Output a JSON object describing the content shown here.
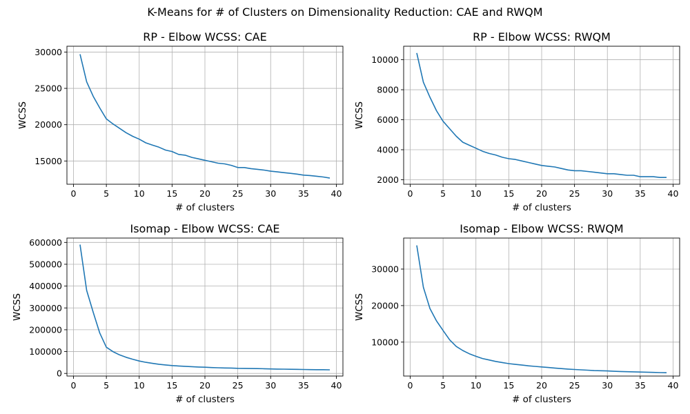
{
  "figure": {
    "suptitle": "K-Means for # of Clusters on Dimensionality Reduction: CAE and RWQM"
  },
  "style": {
    "line_color": "#1f77b4",
    "grid_color": "#b0b0b0",
    "axes_color": "#000000"
  },
  "chart_data": [
    {
      "type": "line",
      "title": "RP - Elbow WCSS: CAE",
      "xlabel": "# of clusters",
      "ylabel": "WCSS",
      "xlim": [
        -1,
        41
      ],
      "ylim": [
        11800,
        30800
      ],
      "xticks": [
        0,
        5,
        10,
        15,
        20,
        25,
        30,
        35,
        40
      ],
      "yticks": [
        15000,
        20000,
        25000,
        30000
      ],
      "grid": true,
      "series": [
        {
          "x": [
            1,
            2,
            3,
            4,
            5,
            6,
            7,
            8,
            9,
            10,
            11,
            12,
            13,
            14,
            15,
            16,
            17,
            18,
            19,
            20,
            21,
            22,
            23,
            24,
            25,
            26,
            27,
            28,
            29,
            30,
            31,
            32,
            33,
            34,
            35,
            36,
            37,
            38,
            39
          ],
          "y": [
            29700,
            25900,
            23900,
            22300,
            20800,
            20100,
            19500,
            18900,
            18400,
            18000,
            17500,
            17200,
            16900,
            16500,
            16300,
            15900,
            15800,
            15500,
            15300,
            15100,
            14900,
            14700,
            14600,
            14400,
            14100,
            14100,
            13950,
            13850,
            13750,
            13600,
            13500,
            13400,
            13300,
            13200,
            13050,
            13000,
            12900,
            12800,
            12650
          ]
        }
      ]
    },
    {
      "type": "line",
      "title": "RP - Elbow WCSS: RWQM",
      "xlabel": "# of clusters",
      "ylabel": "WCSS",
      "xlim": [
        -1,
        41
      ],
      "ylim": [
        1700,
        10900
      ],
      "xticks": [
        0,
        5,
        10,
        15,
        20,
        25,
        30,
        35,
        40
      ],
      "yticks": [
        2000,
        4000,
        6000,
        8000,
        10000
      ],
      "grid": true,
      "series": [
        {
          "x": [
            1,
            2,
            3,
            4,
            5,
            6,
            7,
            8,
            9,
            10,
            11,
            12,
            13,
            14,
            15,
            16,
            17,
            18,
            19,
            20,
            21,
            22,
            23,
            24,
            25,
            26,
            27,
            28,
            29,
            30,
            31,
            32,
            33,
            34,
            35,
            36,
            37,
            38,
            39
          ],
          "y": [
            10450,
            8500,
            7500,
            6600,
            5900,
            5400,
            4900,
            4500,
            4300,
            4100,
            3900,
            3750,
            3650,
            3500,
            3400,
            3350,
            3250,
            3150,
            3050,
            2950,
            2900,
            2850,
            2750,
            2650,
            2600,
            2600,
            2550,
            2500,
            2450,
            2400,
            2400,
            2350,
            2300,
            2300,
            2200,
            2200,
            2200,
            2150,
            2150
          ]
        }
      ]
    },
    {
      "type": "line",
      "title": "Isomap - Elbow WCSS: CAE",
      "xlabel": "# of clusters",
      "ylabel": "WCSS",
      "xlim": [
        -1,
        41
      ],
      "ylim": [
        -12000,
        620000
      ],
      "xticks": [
        0,
        5,
        10,
        15,
        20,
        25,
        30,
        35,
        40
      ],
      "yticks": [
        0,
        100000,
        200000,
        300000,
        400000,
        500000,
        600000
      ],
      "grid": true,
      "series": [
        {
          "x": [
            1,
            2,
            3,
            4,
            5,
            6,
            7,
            8,
            9,
            10,
            11,
            12,
            13,
            14,
            15,
            16,
            17,
            18,
            19,
            20,
            21,
            22,
            23,
            24,
            25,
            26,
            27,
            28,
            29,
            30,
            31,
            32,
            33,
            34,
            35,
            36,
            37,
            38,
            39
          ],
          "y": [
            590000,
            380000,
            280000,
            185000,
            120000,
            100000,
            85000,
            74000,
            65000,
            57000,
            51000,
            46000,
            42000,
            39000,
            36000,
            34000,
            32500,
            31000,
            29500,
            28500,
            27000,
            26000,
            25000,
            24500,
            23500,
            23000,
            22500,
            22000,
            21500,
            20500,
            20000,
            19500,
            19000,
            18500,
            18000,
            17500,
            17000,
            17000,
            16500
          ]
        }
      ]
    },
    {
      "type": "line",
      "title": "Isomap - Elbow WCSS: RWQM",
      "xlabel": "# of clusters",
      "ylabel": "WCSS",
      "xlim": [
        -1,
        41
      ],
      "ylim": [
        700,
        38500
      ],
      "xticks": [
        0,
        5,
        10,
        15,
        20,
        25,
        30,
        35,
        40
      ],
      "yticks": [
        10000,
        20000,
        30000
      ],
      "grid": true,
      "series": [
        {
          "x": [
            1,
            2,
            3,
            4,
            5,
            6,
            7,
            8,
            9,
            10,
            11,
            12,
            13,
            14,
            15,
            16,
            17,
            18,
            19,
            20,
            21,
            22,
            23,
            24,
            25,
            26,
            27,
            28,
            29,
            30,
            31,
            32,
            33,
            34,
            35,
            36,
            37,
            38,
            39
          ],
          "y": [
            36500,
            25000,
            19200,
            15800,
            13200,
            10600,
            8800,
            7700,
            6800,
            6100,
            5500,
            5100,
            4700,
            4400,
            4100,
            3900,
            3700,
            3500,
            3350,
            3200,
            3050,
            2900,
            2750,
            2600,
            2500,
            2400,
            2300,
            2200,
            2150,
            2100,
            2000,
            1950,
            1900,
            1850,
            1800,
            1750,
            1700,
            1650,
            1600
          ]
        }
      ]
    }
  ]
}
